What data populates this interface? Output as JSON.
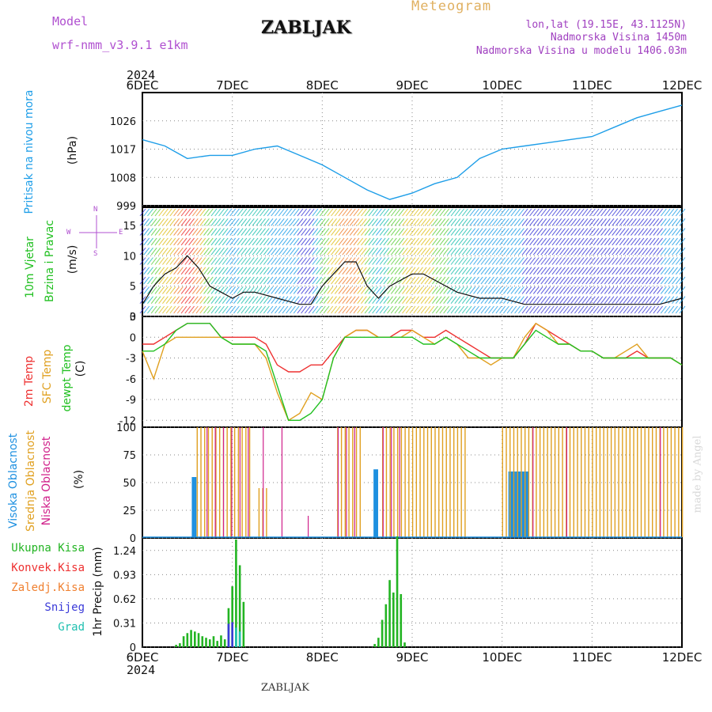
{
  "header": {
    "model_label": "Model",
    "model_name": "wrf-nmm_v3.9.1  e1km",
    "station": "ZABLJAK",
    "product": "Meteogram",
    "coords": "lon,lat (19.15E, 43.1125N)",
    "elevation": "Nadmorska Visina 1450m",
    "model_elevation": "Nadmorska Visina u modelu 1406.03m",
    "footer_station": "ZABLJAK",
    "watermark": "made by Angel"
  },
  "colors": {
    "pressure": "#1e9ee8",
    "temp": "#ee3030",
    "sfc_temp": "#e0a020",
    "dewpt": "#22c022",
    "high_cloud": "#1e90e0",
    "mid_cloud": "#e0a020",
    "low_cloud": "#d0208a",
    "total_precip": "#22b422",
    "convective": "#ee3030",
    "frozen": "#f08030",
    "snow": "#3a3ad8",
    "graupel": "#20c0b0",
    "model_text": "#b050d0",
    "product_text": "#e0b060",
    "purple_text": "#a040c0"
  },
  "time_axis": {
    "year": "2024",
    "ticks": [
      "6DEC",
      "7DEC",
      "8DEC",
      "9DEC",
      "10DEC",
      "11DEC",
      "12DEC"
    ]
  },
  "panels": {
    "pressure": {
      "title": "Pritisak na nivou mora",
      "unit": "(hPa)"
    },
    "wind": {
      "title1": "10m Vjetar",
      "title2": "Brzina i Pravac",
      "unit": "(m/s)",
      "compass": [
        "N",
        "S",
        "W",
        "E"
      ]
    },
    "temp": {
      "t1": "2m Temp",
      "t2": "SFC Temp",
      "t3": "dewpt Temp",
      "unit": "(C)"
    },
    "cloud": {
      "c1": "Visoka Oblacnost",
      "c2": "Srednja Oblacnost",
      "c3": "Niska Oblacnost",
      "unit": "(%)"
    },
    "precip": {
      "unit": "1hr Precip (mm)",
      "legend": [
        "Ukupna Kisa",
        "Konvek.Kisa",
        "Zaledj.Kisa",
        "Snijeg",
        "Grad"
      ]
    }
  },
  "chart_data": [
    {
      "type": "line",
      "title": "Pritisak na nivou mora",
      "ylabel": "(hPa)",
      "ylim": [
        999,
        1035
      ],
      "yticks": [
        999,
        1008,
        1017,
        1026
      ],
      "x": [
        0,
        6,
        12,
        18,
        24,
        30,
        36,
        42,
        48,
        54,
        60,
        66,
        72,
        78,
        84,
        90,
        96,
        102,
        108,
        114,
        120,
        126,
        132,
        138,
        144
      ],
      "series": [
        {
          "values": [
            1020,
            1018,
            1014,
            1015,
            1015,
            1017,
            1018,
            1015,
            1012,
            1008,
            1004,
            1001,
            1003,
            1006,
            1008,
            1014,
            1017,
            1018,
            1019,
            1020,
            1021,
            1024,
            1027,
            1029,
            1031
          ]
        }
      ],
      "grid": true
    },
    {
      "type": "line",
      "title": "10m Vjetar Brzina i Pravac",
      "ylabel": "(m/s)",
      "ylim": [
        0,
        18
      ],
      "yticks": [
        0,
        5,
        10,
        15
      ],
      "x": [
        0,
        3,
        6,
        9,
        12,
        15,
        18,
        21,
        24,
        27,
        30,
        36,
        42,
        45,
        48,
        51,
        54,
        57,
        60,
        63,
        66,
        69,
        72,
        75,
        78,
        84,
        90,
        96,
        102,
        108,
        114,
        120,
        126,
        132,
        138,
        144
      ],
      "series": [
        {
          "values": [
            2,
            5,
            7,
            8,
            10,
            8,
            5,
            4,
            3,
            4,
            4,
            3,
            2,
            2,
            5,
            7,
            9,
            9,
            5,
            3,
            5,
            6,
            7,
            7,
            6,
            4,
            3,
            3,
            2,
            2,
            2,
            2,
            2,
            2,
            2,
            3
          ]
        }
      ],
      "grid": true
    },
    {
      "type": "line",
      "ylabel": "(C)",
      "ylim": [
        -13,
        3
      ],
      "yticks": [
        -12,
        -9,
        -6,
        -3,
        0,
        3
      ],
      "x": [
        0,
        3,
        6,
        9,
        12,
        15,
        18,
        21,
        24,
        27,
        30,
        33,
        36,
        39,
        42,
        45,
        48,
        51,
        54,
        57,
        60,
        63,
        66,
        69,
        72,
        75,
        78,
        81,
        84,
        87,
        90,
        93,
        96,
        99,
        102,
        105,
        108,
        111,
        114,
        117,
        120,
        123,
        126,
        129,
        132,
        135,
        138,
        141,
        144
      ],
      "series": [
        {
          "name": "2m Temp",
          "values": [
            -1,
            -1,
            0,
            1,
            2,
            2,
            2,
            0,
            0,
            0,
            0,
            -1,
            -4,
            -5,
            -5,
            -4,
            -4,
            -2,
            0,
            1,
            1,
            0,
            0,
            1,
            1,
            0,
            0,
            1,
            0,
            -1,
            -2,
            -3,
            -3,
            -3,
            -1,
            2,
            1,
            0,
            -1,
            -2,
            -2,
            -3,
            -3,
            -3,
            -2,
            -3,
            -3,
            -3,
            -4
          ]
        },
        {
          "name": "SFC Temp",
          "values": [
            -2,
            -6,
            -1,
            0,
            0,
            0,
            0,
            0,
            -1,
            -1,
            -1,
            -3,
            -8,
            -12,
            -11,
            -8,
            -9,
            -3,
            0,
            1,
            1,
            0,
            0,
            0,
            1,
            0,
            -1,
            0,
            -1,
            -3,
            -3,
            -4,
            -3,
            -3,
            0,
            2,
            1,
            -1,
            -1,
            -2,
            -2,
            -3,
            -3,
            -2,
            -1,
            -3,
            -3,
            -3,
            -4
          ]
        },
        {
          "name": "dewpt Temp",
          "values": [
            -2,
            -2,
            -1,
            1,
            2,
            2,
            2,
            0,
            -1,
            -1,
            -1,
            -2,
            -7,
            -12,
            -12,
            -11,
            -9,
            -3,
            0,
            0,
            0,
            0,
            0,
            0,
            0,
            -1,
            -1,
            0,
            -1,
            -2,
            -3,
            -3,
            -3,
            -3,
            -1,
            1,
            0,
            -1,
            -1,
            -2,
            -2,
            -3,
            -3,
            -3,
            -3,
            -3,
            -3,
            -3,
            -4
          ]
        }
      ],
      "grid": true
    },
    {
      "type": "bar",
      "ylabel": "(%)",
      "ylim": [
        0,
        100
      ],
      "yticks": [
        0,
        25,
        50,
        75,
        100
      ],
      "series": [
        {
          "name": "Visoka Oblacnost",
          "segments": [
            [
              13.5,
              14.5,
              55
            ],
            [
              62,
              63,
              62
            ],
            [
              98,
              103,
              60
            ]
          ]
        },
        {
          "name": "Srednja Oblacnost",
          "segments": [
            [
              14.5,
              29,
              100
            ],
            [
              31,
              33,
              45
            ],
            [
              52,
              58,
              100
            ],
            [
              64,
              86,
              100
            ],
            [
              96,
              144,
              100
            ]
          ]
        },
        {
          "name": "Niska Oblacnost",
          "segments": [
            [
              17,
              28,
              100
            ],
            [
              32,
              34,
              100
            ],
            [
              37,
              38,
              100
            ],
            [
              44,
              45,
              20
            ],
            [
              52,
              58,
              100
            ],
            [
              64,
              70,
              100
            ],
            [
              104,
              106,
              100
            ],
            [
              113,
              114,
              100
            ],
            [
              138,
              139,
              100
            ]
          ]
        }
      ],
      "grid": true
    },
    {
      "type": "bar",
      "ylabel": "1hr Precip (mm)",
      "ylim": [
        0,
        1.4
      ],
      "yticks": [
        0,
        0.31,
        0.62,
        0.93,
        1.24
      ],
      "series": [
        {
          "name": "Ukupna Kisa",
          "x": [
            9,
            10,
            11,
            12,
            13,
            14,
            15,
            16,
            17,
            18,
            19,
            20,
            21,
            22,
            23,
            24,
            25,
            26,
            27,
            62,
            63,
            64,
            65,
            66,
            67,
            68,
            69,
            70
          ],
          "values": [
            0.03,
            0.05,
            0.14,
            0.18,
            0.22,
            0.2,
            0.18,
            0.14,
            0.12,
            0.1,
            0.14,
            0.08,
            0.15,
            0.1,
            0.5,
            0.78,
            1.38,
            1.05,
            0.58,
            0.04,
            0.12,
            0.35,
            0.55,
            0.86,
            0.7,
            1.42,
            0.68,
            0.06
          ]
        },
        {
          "name": "Snijeg",
          "x": [
            23,
            24
          ],
          "values": [
            0.3,
            0.32
          ]
        },
        {
          "name": "Grad",
          "x": [
            25,
            26
          ],
          "values": [
            0.25,
            0.2
          ]
        }
      ],
      "grid": true
    }
  ]
}
